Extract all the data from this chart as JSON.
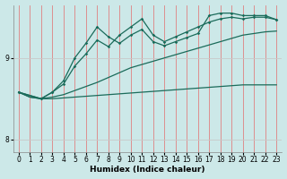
{
  "xlabel": "Humidex (Indice chaleur)",
  "bg_color": "#cce8e8",
  "line_color": "#1a6b5a",
  "grid_color_v": "#e08080",
  "grid_color_h": "#c8c8c8",
  "xlim": [
    -0.5,
    23.5
  ],
  "ylim": [
    7.85,
    9.65
  ],
  "yticks": [
    8,
    9
  ],
  "xticks": [
    0,
    1,
    2,
    3,
    4,
    5,
    6,
    7,
    8,
    9,
    10,
    11,
    12,
    13,
    14,
    15,
    16,
    17,
    18,
    19,
    20,
    21,
    22,
    23
  ],
  "line1_x": [
    0,
    1,
    2,
    3,
    4,
    5,
    6,
    7,
    8,
    9,
    10,
    11,
    12,
    13,
    14,
    15,
    16,
    17,
    18,
    19,
    20,
    21,
    22,
    23
  ],
  "line1_y": [
    8.58,
    8.52,
    8.5,
    8.5,
    8.51,
    8.52,
    8.53,
    8.54,
    8.55,
    8.56,
    8.57,
    8.58,
    8.59,
    8.6,
    8.61,
    8.62,
    8.63,
    8.64,
    8.65,
    8.66,
    8.67,
    8.67,
    8.67,
    8.67
  ],
  "line2_x": [
    0,
    1,
    2,
    3,
    4,
    5,
    6,
    7,
    8,
    9,
    10,
    11,
    12,
    13,
    14,
    15,
    16,
    17,
    18,
    19,
    20,
    21,
    22,
    23
  ],
  "line2_y": [
    8.58,
    8.52,
    8.5,
    8.52,
    8.55,
    8.6,
    8.65,
    8.7,
    8.76,
    8.82,
    8.88,
    8.92,
    8.96,
    9.0,
    9.04,
    9.08,
    9.12,
    9.16,
    9.2,
    9.24,
    9.28,
    9.3,
    9.32,
    9.33
  ],
  "line3_x": [
    0,
    2,
    3,
    4,
    5,
    6,
    7,
    8,
    9,
    10,
    11,
    12,
    13,
    14,
    15,
    16,
    17,
    18,
    19,
    20,
    21,
    22,
    23
  ],
  "line3_y": [
    8.58,
    8.5,
    8.58,
    8.68,
    8.9,
    9.05,
    9.22,
    9.14,
    9.28,
    9.38,
    9.48,
    9.28,
    9.2,
    9.26,
    9.32,
    9.38,
    9.44,
    9.48,
    9.5,
    9.48,
    9.5,
    9.5,
    9.47
  ],
  "line4_x": [
    0,
    2,
    3,
    4,
    5,
    6,
    7,
    8,
    9,
    10,
    11,
    12,
    13,
    14,
    15,
    16,
    17,
    18,
    19,
    20,
    21,
    22,
    23
  ],
  "line4_y": [
    8.58,
    8.5,
    8.58,
    8.72,
    9.0,
    9.18,
    9.38,
    9.26,
    9.18,
    9.28,
    9.35,
    9.2,
    9.15,
    9.2,
    9.25,
    9.3,
    9.52,
    9.55,
    9.55,
    9.52,
    9.52,
    9.52,
    9.47
  ]
}
